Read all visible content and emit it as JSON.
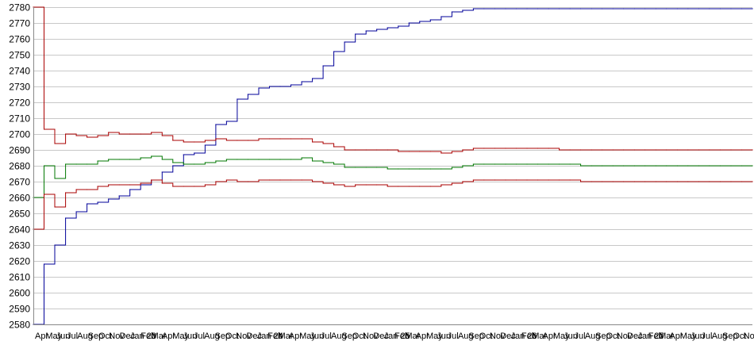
{
  "chart_data": {
    "type": "line",
    "title": "",
    "xlabel": "",
    "ylabel": "",
    "ylim": [
      2580,
      2780
    ],
    "y_ticks": [
      2580,
      2590,
      2600,
      2610,
      2620,
      2630,
      2640,
      2650,
      2660,
      2670,
      2680,
      2690,
      2700,
      2710,
      2720,
      2730,
      2740,
      2750,
      2760,
      2770,
      2780
    ],
    "grid": true,
    "legend": "none",
    "x_tick_labels": [
      "Apr",
      "May",
      "Jun",
      "Jul",
      "Aug",
      "Sep",
      "Oct",
      "Nov",
      "Dec",
      "Jan 23",
      "Feb",
      "Mar",
      "Apr",
      "May",
      "Jun",
      "Jul",
      "Aug",
      "Sep",
      "Oct",
      "Nov",
      "Dec",
      "Jan 24",
      "Feb",
      "Mar",
      "Apr",
      "May",
      "Jun",
      "Jul",
      "Aug",
      "Sep",
      "Oct",
      "Nov",
      "Dec",
      "Jan 25",
      "Feb",
      "Mar",
      "Apr",
      "May",
      "Jun",
      "Jul",
      "Aug",
      "Sep",
      "Oct",
      "Nov",
      "Dec",
      "Jan 26",
      "Feb",
      "Mar",
      "Apr",
      "May",
      "Jun",
      "Jul",
      "Aug",
      "Sep",
      "Oct",
      "Nov",
      "Dec",
      "Jan 27",
      "Feb",
      "Mar",
      "Apr",
      "May",
      "Jun",
      "Jul",
      "Aug",
      "Sep",
      "Oct",
      "Nov"
    ],
    "x": [
      0,
      1,
      2,
      3,
      4,
      5,
      6,
      7,
      8,
      9,
      10,
      11,
      12,
      13,
      14,
      15,
      16,
      17,
      18,
      19,
      20,
      21,
      22,
      23,
      24,
      25,
      26,
      27,
      28,
      29,
      30,
      31,
      32,
      33,
      34,
      35,
      36,
      37,
      38,
      39,
      40,
      41,
      42,
      43,
      44,
      45,
      46,
      47,
      48,
      49,
      50,
      51,
      52,
      53,
      54,
      55,
      56,
      57,
      58,
      59,
      60,
      61,
      62,
      63,
      64,
      65,
      66,
      67
    ],
    "series": [
      {
        "color": "#000099",
        "values": [
          2580,
          2618,
          2630,
          2647,
          2651,
          2656,
          2657,
          2659,
          2661,
          2665,
          2668,
          2671,
          2676,
          2680,
          2687,
          2688,
          2693,
          2706,
          2708,
          2722,
          2725,
          2729,
          2730,
          2730,
          2731,
          2733,
          2735,
          2743,
          2752,
          2758,
          2763,
          2765,
          2766,
          2767,
          2768,
          2770,
          2771,
          2772,
          2774,
          2777,
          2778,
          2779,
          2779,
          2779,
          2779,
          2779,
          2779,
          2779,
          2779,
          2779,
          2779,
          2779,
          2779,
          2779,
          2779,
          2779,
          2779,
          2779,
          2779,
          2779,
          2779,
          2779,
          2779,
          2779,
          2779,
          2779,
          2779,
          2779
        ]
      },
      {
        "color": "#aa0000",
        "values": [
          2780,
          2703,
          2694,
          2700,
          2699,
          2698,
          2699,
          2701,
          2700,
          2700,
          2700,
          2701,
          2699,
          2696,
          2695,
          2695,
          2696,
          2697,
          2696,
          2696,
          2696,
          2697,
          2697,
          2697,
          2697,
          2697,
          2695,
          2694,
          2692,
          2690,
          2690,
          2690,
          2690,
          2690,
          2689,
          2689,
          2689,
          2689,
          2688,
          2689,
          2690,
          2691,
          2691,
          2691,
          2691,
          2691,
          2691,
          2691,
          2691,
          2690,
          2690,
          2690,
          2690,
          2690,
          2690,
          2690,
          2690,
          2690,
          2690,
          2690,
          2690,
          2690,
          2690,
          2690,
          2690,
          2690,
          2690,
          2690
        ]
      },
      {
        "color": "#007700",
        "values": [
          2660,
          2680,
          2672,
          2681,
          2681,
          2681,
          2683,
          2684,
          2684,
          2684,
          2685,
          2686,
          2684,
          2682,
          2681,
          2681,
          2682,
          2683,
          2684,
          2684,
          2684,
          2684,
          2684,
          2684,
          2684,
          2685,
          2683,
          2682,
          2681,
          2679,
          2679,
          2679,
          2679,
          2678,
          2678,
          2678,
          2678,
          2678,
          2678,
          2679,
          2680,
          2681,
          2681,
          2681,
          2681,
          2681,
          2681,
          2681,
          2681,
          2681,
          2681,
          2680,
          2680,
          2680,
          2680,
          2680,
          2680,
          2680,
          2680,
          2680,
          2680,
          2680,
          2680,
          2680,
          2680,
          2680,
          2680,
          2680
        ]
      },
      {
        "color": "#aa0000",
        "values": [
          2640,
          2662,
          2654,
          2663,
          2665,
          2665,
          2667,
          2668,
          2668,
          2668,
          2669,
          2671,
          2669,
          2667,
          2667,
          2667,
          2668,
          2670,
          2671,
          2670,
          2670,
          2671,
          2671,
          2671,
          2671,
          2671,
          2670,
          2669,
          2668,
          2667,
          2668,
          2668,
          2668,
          2667,
          2667,
          2667,
          2667,
          2667,
          2668,
          2669,
          2670,
          2671,
          2671,
          2671,
          2671,
          2671,
          2671,
          2671,
          2671,
          2671,
          2671,
          2670,
          2670,
          2670,
          2670,
          2670,
          2670,
          2670,
          2670,
          2670,
          2670,
          2670,
          2670,
          2670,
          2670,
          2670,
          2670,
          2670
        ]
      }
    ]
  }
}
